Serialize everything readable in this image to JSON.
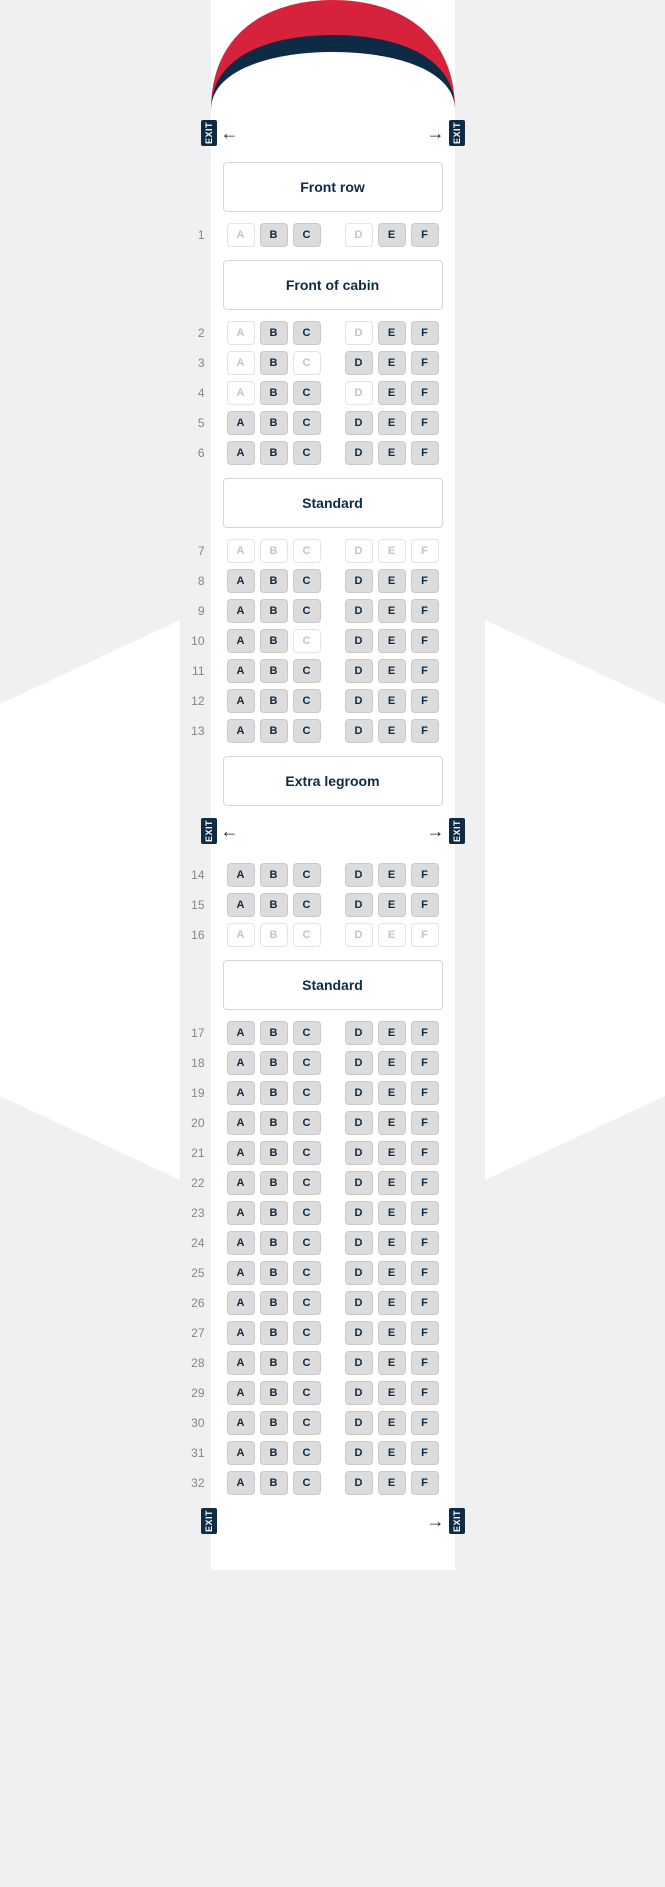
{
  "exit_label": "EXIT",
  "columns_left": [
    "A",
    "B",
    "C"
  ],
  "columns_right": [
    "D",
    "E",
    "F"
  ],
  "colors": {
    "nose_red": "#d6223a",
    "nose_navy": "#0d2b45",
    "fuselage": "#ffffff",
    "page_bg": "#f0f0f0",
    "seat_available_bg": "#dcdcdc",
    "seat_available_border": "#c9c9c9",
    "seat_available_text": "#0d2b45",
    "seat_unavailable_bg": "#ffffff",
    "seat_unavailable_border": "#e3e3e3",
    "seat_unavailable_text": "#c4c4c4",
    "row_num": "#868686"
  },
  "layout": [
    {
      "type": "exit",
      "arrows": "both"
    },
    {
      "type": "section",
      "label": "Front row"
    },
    {
      "type": "row",
      "num": 1,
      "seats": {
        "A": 0,
        "B": 1,
        "C": 1,
        "D": 0,
        "E": 1,
        "F": 1
      }
    },
    {
      "type": "section",
      "label": "Front of cabin"
    },
    {
      "type": "row",
      "num": 2,
      "seats": {
        "A": 0,
        "B": 1,
        "C": 1,
        "D": 0,
        "E": 1,
        "F": 1
      }
    },
    {
      "type": "row",
      "num": 3,
      "seats": {
        "A": 0,
        "B": 1,
        "C": 0,
        "D": 1,
        "E": 1,
        "F": 1
      }
    },
    {
      "type": "row",
      "num": 4,
      "seats": {
        "A": 0,
        "B": 1,
        "C": 1,
        "D": 0,
        "E": 1,
        "F": 1
      }
    },
    {
      "type": "row",
      "num": 5,
      "seats": {
        "A": 1,
        "B": 1,
        "C": 1,
        "D": 1,
        "E": 1,
        "F": 1
      }
    },
    {
      "type": "row",
      "num": 6,
      "seats": {
        "A": 1,
        "B": 1,
        "C": 1,
        "D": 1,
        "E": 1,
        "F": 1
      }
    },
    {
      "type": "section",
      "label": "Standard"
    },
    {
      "type": "row",
      "num": 7,
      "seats": {
        "A": 0,
        "B": 0,
        "C": 0,
        "D": 0,
        "E": 0,
        "F": 0
      }
    },
    {
      "type": "row",
      "num": 8,
      "seats": {
        "A": 1,
        "B": 1,
        "C": 1,
        "D": 1,
        "E": 1,
        "F": 1
      }
    },
    {
      "type": "row",
      "num": 9,
      "seats": {
        "A": 1,
        "B": 1,
        "C": 1,
        "D": 1,
        "E": 1,
        "F": 1
      }
    },
    {
      "type": "row",
      "num": 10,
      "seats": {
        "A": 1,
        "B": 1,
        "C": 0,
        "D": 1,
        "E": 1,
        "F": 1
      }
    },
    {
      "type": "row",
      "num": 11,
      "seats": {
        "A": 1,
        "B": 1,
        "C": 1,
        "D": 1,
        "E": 1,
        "F": 1
      }
    },
    {
      "type": "row",
      "num": 12,
      "seats": {
        "A": 1,
        "B": 1,
        "C": 1,
        "D": 1,
        "E": 1,
        "F": 1
      }
    },
    {
      "type": "row",
      "num": 13,
      "seats": {
        "A": 1,
        "B": 1,
        "C": 1,
        "D": 1,
        "E": 1,
        "F": 1
      }
    },
    {
      "type": "section",
      "label": "Extra legroom"
    },
    {
      "type": "exit",
      "arrows": "both"
    },
    {
      "type": "row",
      "num": 14,
      "seats": {
        "A": 1,
        "B": 1,
        "C": 1,
        "D": 1,
        "E": 1,
        "F": 1
      }
    },
    {
      "type": "row",
      "num": 15,
      "seats": {
        "A": 1,
        "B": 1,
        "C": 1,
        "D": 1,
        "E": 1,
        "F": 1
      }
    },
    {
      "type": "row",
      "num": 16,
      "seats": {
        "A": 0,
        "B": 0,
        "C": 0,
        "D": 0,
        "E": 0,
        "F": 0
      }
    },
    {
      "type": "section",
      "label": "Standard"
    },
    {
      "type": "row",
      "num": 17,
      "seats": {
        "A": 1,
        "B": 1,
        "C": 1,
        "D": 1,
        "E": 1,
        "F": 1
      }
    },
    {
      "type": "row",
      "num": 18,
      "seats": {
        "A": 1,
        "B": 1,
        "C": 1,
        "D": 1,
        "E": 1,
        "F": 1
      }
    },
    {
      "type": "row",
      "num": 19,
      "seats": {
        "A": 1,
        "B": 1,
        "C": 1,
        "D": 1,
        "E": 1,
        "F": 1
      }
    },
    {
      "type": "row",
      "num": 20,
      "seats": {
        "A": 1,
        "B": 1,
        "C": 1,
        "D": 1,
        "E": 1,
        "F": 1
      }
    },
    {
      "type": "row",
      "num": 21,
      "seats": {
        "A": 1,
        "B": 1,
        "C": 1,
        "D": 1,
        "E": 1,
        "F": 1
      }
    },
    {
      "type": "row",
      "num": 22,
      "seats": {
        "A": 1,
        "B": 1,
        "C": 1,
        "D": 1,
        "E": 1,
        "F": 1
      }
    },
    {
      "type": "row",
      "num": 23,
      "seats": {
        "A": 1,
        "B": 1,
        "C": 1,
        "D": 1,
        "E": 1,
        "F": 1
      }
    },
    {
      "type": "row",
      "num": 24,
      "seats": {
        "A": 1,
        "B": 1,
        "C": 1,
        "D": 1,
        "E": 1,
        "F": 1
      }
    },
    {
      "type": "row",
      "num": 25,
      "seats": {
        "A": 1,
        "B": 1,
        "C": 1,
        "D": 1,
        "E": 1,
        "F": 1
      }
    },
    {
      "type": "row",
      "num": 26,
      "seats": {
        "A": 1,
        "B": 1,
        "C": 1,
        "D": 1,
        "E": 1,
        "F": 1
      }
    },
    {
      "type": "row",
      "num": 27,
      "seats": {
        "A": 1,
        "B": 1,
        "C": 1,
        "D": 1,
        "E": 1,
        "F": 1
      }
    },
    {
      "type": "row",
      "num": 28,
      "seats": {
        "A": 1,
        "B": 1,
        "C": 1,
        "D": 1,
        "E": 1,
        "F": 1
      }
    },
    {
      "type": "row",
      "num": 29,
      "seats": {
        "A": 1,
        "B": 1,
        "C": 1,
        "D": 1,
        "E": 1,
        "F": 1
      }
    },
    {
      "type": "row",
      "num": 30,
      "seats": {
        "A": 1,
        "B": 1,
        "C": 1,
        "D": 1,
        "E": 1,
        "F": 1
      }
    },
    {
      "type": "row",
      "num": 31,
      "seats": {
        "A": 1,
        "B": 1,
        "C": 1,
        "D": 1,
        "E": 1,
        "F": 1
      }
    },
    {
      "type": "row",
      "num": 32,
      "seats": {
        "A": 1,
        "B": 1,
        "C": 1,
        "D": 1,
        "E": 1,
        "F": 1
      }
    },
    {
      "type": "exit",
      "arrows": "right"
    }
  ]
}
